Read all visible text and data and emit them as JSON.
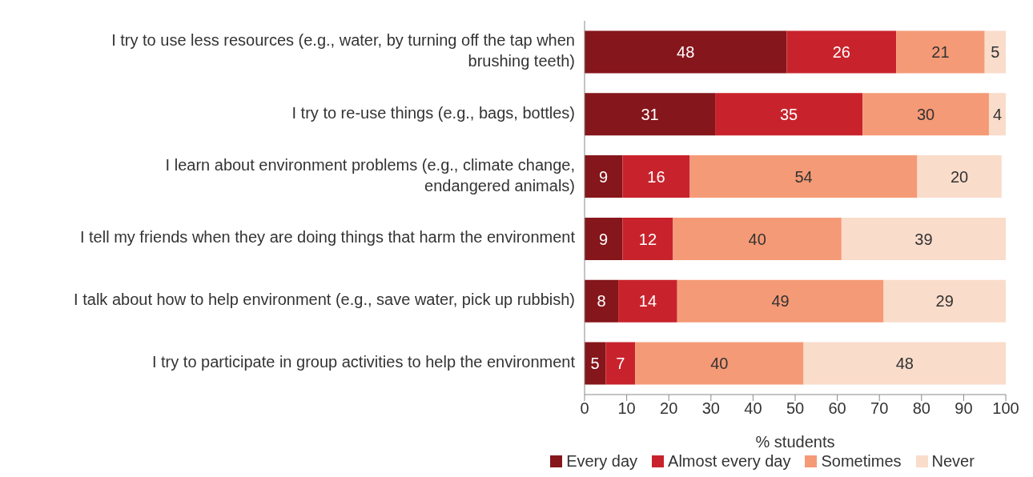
{
  "chart_data": {
    "type": "bar",
    "orientation": "horizontal",
    "stacked": true,
    "xlabel": "% students",
    "categories": [
      "I try to use less resources (e.g., water, by turning off the tap when\nbrushing teeth)",
      "I try to re-use things (e.g., bags, bottles)",
      "I learn about environment problems (e.g., climate change,\nendangered animals)",
      "I tell my friends when they are doing things that harm the environment",
      "I talk about how to help environment (e.g., save water, pick up rubbish)",
      "I try to participate in group activities to help the environment"
    ],
    "series": [
      {
        "name": "Every day",
        "color": "#85161b",
        "values": [
          48,
          31,
          9,
          9,
          8,
          5
        ]
      },
      {
        "name": "Almost every day",
        "color": "#c8232c",
        "values": [
          26,
          35,
          16,
          12,
          14,
          7
        ]
      },
      {
        "name": "Sometimes",
        "color": "#f59a76",
        "values": [
          21,
          30,
          54,
          40,
          49,
          40
        ]
      },
      {
        "name": "Never",
        "color": "#fadccb",
        "values": [
          5,
          4,
          20,
          39,
          29,
          48
        ]
      }
    ],
    "xlim": [
      0,
      100
    ],
    "xticks": [
      0,
      10,
      20,
      30,
      40,
      50,
      60,
      70,
      80,
      90,
      100
    ],
    "grid": false,
    "legend": "bottom",
    "data_labels": true
  }
}
